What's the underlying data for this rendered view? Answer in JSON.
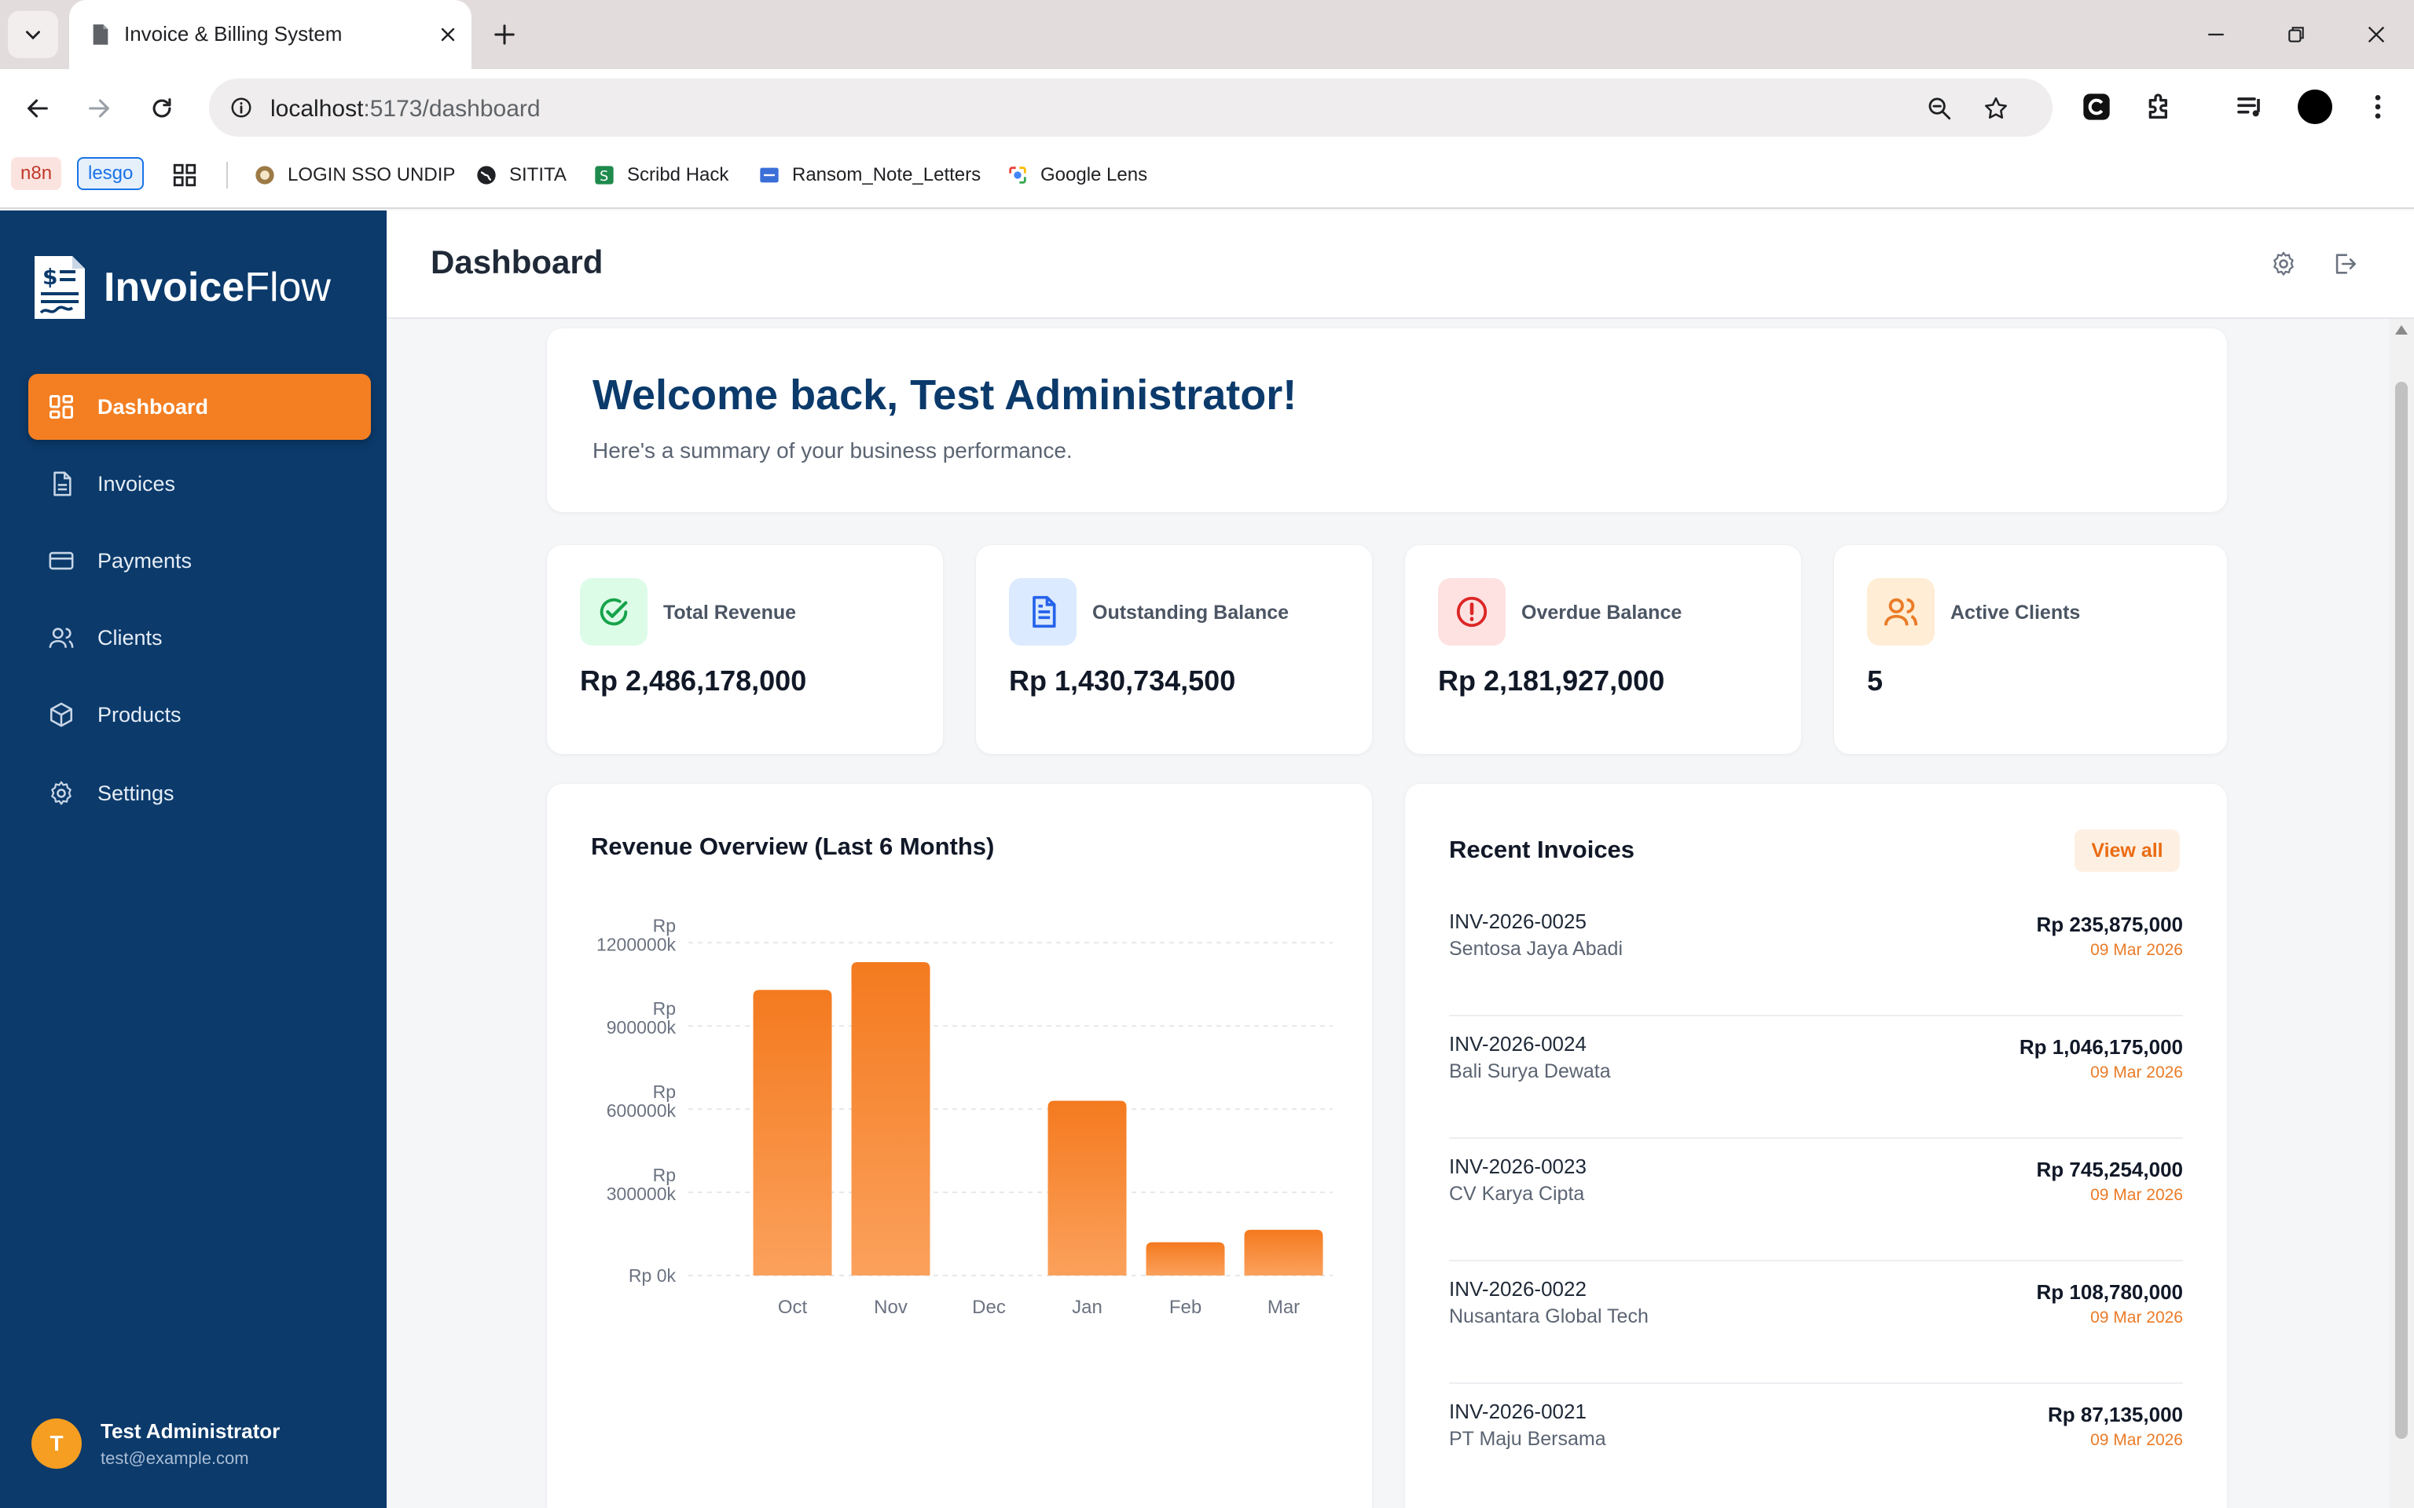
{
  "browser": {
    "tab_title": "Invoice & Billing System",
    "url_host": "localhost",
    "url_path": ":5173/dashboard",
    "bookmarks": {
      "chip1": "n8n",
      "chip2": "lesgo",
      "items": [
        "LOGIN SSO UNDIP",
        "SITITA",
        "Scribd Hack",
        "Ransom_Note_Letters",
        "Google Lens"
      ]
    }
  },
  "app": {
    "logo_bold": "Invoice",
    "logo_thin": "Flow",
    "page_title": "Dashboard",
    "accent": "#f37f22",
    "sidebar_bg": "#0b3a6b"
  },
  "sidebar": {
    "items": [
      {
        "label": "Dashboard",
        "icon": "grid-icon"
      },
      {
        "label": "Invoices",
        "icon": "document-icon"
      },
      {
        "label": "Payments",
        "icon": "credit-card-icon"
      },
      {
        "label": "Clients",
        "icon": "users-icon"
      },
      {
        "label": "Products",
        "icon": "box-icon"
      },
      {
        "label": "Settings",
        "icon": "gear-icon"
      }
    ],
    "user": {
      "initial": "T",
      "name": "Test Administrator",
      "email": "test@example.com"
    }
  },
  "welcome": {
    "title": "Welcome back, Test Administrator!",
    "subtitle": "Here's a summary of your business performance."
  },
  "stats": [
    {
      "label": "Total Revenue",
      "value": "Rp 2,486,178,000",
      "icon": "check-circle-icon",
      "color": "#16a34a",
      "bg": "#dcfce7"
    },
    {
      "label": "Outstanding Balance",
      "value": "Rp 1,430,734,500",
      "icon": "document-icon",
      "color": "#2563eb",
      "bg": "#dbeafe"
    },
    {
      "label": "Overdue Balance",
      "value": "Rp 2,181,927,000",
      "icon": "alert-circle-icon",
      "color": "#dc2626",
      "bg": "#fee2e2"
    },
    {
      "label": "Active Clients",
      "value": "5",
      "icon": "users-icon",
      "color": "#ea7b27",
      "bg": "#ffedd5"
    }
  ],
  "revenue": {
    "title": "Revenue Overview (Last 6 Months)"
  },
  "chart_data": {
    "type": "bar",
    "title": "Revenue Overview (Last 6 Months)",
    "categories": [
      "Oct",
      "Nov",
      "Dec",
      "Jan",
      "Feb",
      "Mar"
    ],
    "values": [
      1030000,
      1130000,
      0,
      630000,
      120000,
      165000
    ],
    "ylim": [
      0,
      1200000
    ],
    "ticks": [
      {
        "v": 1200000,
        "l1": "Rp",
        "l2": "1200000k"
      },
      {
        "v": 900000,
        "l1": "Rp",
        "l2": "900000k"
      },
      {
        "v": 600000,
        "l1": "Rp",
        "l2": "600000k"
      },
      {
        "v": 300000,
        "l1": "Rp",
        "l2": "300000k"
      },
      {
        "v": 0,
        "l1": "",
        "l2": "Rp 0k"
      }
    ],
    "grid": true,
    "bar_color": "#f37f22"
  },
  "recent": {
    "title": "Recent Invoices",
    "view_all": "View all",
    "invoices": [
      {
        "number": "INV-2026-0025",
        "client": "Sentosa Jaya Abadi",
        "amount": "Rp 235,875,000",
        "date": "09 Mar 2026"
      },
      {
        "number": "INV-2026-0024",
        "client": "Bali Surya Dewata",
        "amount": "Rp 1,046,175,000",
        "date": "09 Mar 2026"
      },
      {
        "number": "INV-2026-0023",
        "client": "CV Karya Cipta",
        "amount": "Rp 745,254,000",
        "date": "09 Mar 2026"
      },
      {
        "number": "INV-2026-0022",
        "client": "Nusantara Global Tech",
        "amount": "Rp 108,780,000",
        "date": "09 Mar 2026"
      },
      {
        "number": "INV-2026-0021",
        "client": "PT Maju Bersama",
        "amount": "Rp 87,135,000",
        "date": "09 Mar 2026"
      }
    ]
  }
}
